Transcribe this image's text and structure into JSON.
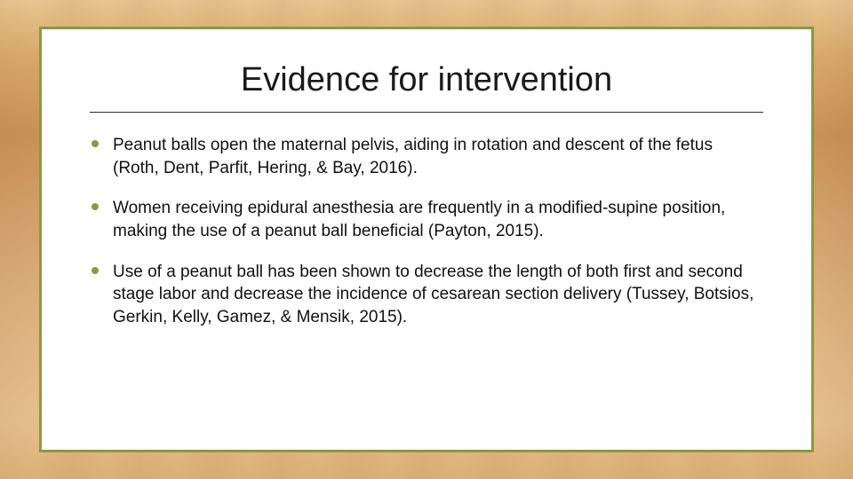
{
  "slide": {
    "title": "Evidence for intervention",
    "accent_color": "#8a9a3f",
    "background": "wood",
    "bullets": [
      "Peanut balls open the maternal pelvis, aiding in rotation and descent of the fetus (Roth, Dent, Parfit, Hering, & Bay, 2016).",
      "Women receiving epidural anesthesia are frequently in a modified-supine position, making the use of a peanut ball beneficial (Payton, 2015).",
      "Use of a peanut ball has been shown to decrease the length of both first and second stage labor and decrease the incidence of cesarean section delivery (Tussey, Botsios, Gerkin, Kelly, Gamez, & Mensik, 2015)."
    ]
  }
}
